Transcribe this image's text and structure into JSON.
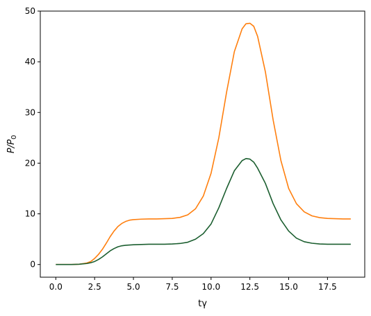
{
  "chart_data": {
    "type": "line",
    "title": "",
    "xlabel": "tγ",
    "ylabel_parts": {
      "base": "P/P",
      "sub": "0"
    },
    "xlim": [
      -1.0,
      19.9
    ],
    "ylim": [
      -2.5,
      50
    ],
    "xticks": [
      0.0,
      2.5,
      5.0,
      7.5,
      10.0,
      12.5,
      15.0,
      17.5
    ],
    "xtick_labels": [
      "0.0",
      "2.5",
      "5.0",
      "7.5",
      "10.0",
      "12.5",
      "15.0",
      "17.5"
    ],
    "yticks": [
      0,
      10,
      20,
      30,
      40,
      50
    ],
    "ytick_labels": [
      "0",
      "10",
      "20",
      "30",
      "40",
      "50"
    ],
    "grid": false,
    "series": [
      {
        "color": "#ff7f0e",
        "x": [
          0,
          0.5,
          1,
          1.5,
          2,
          2.25,
          2.5,
          2.75,
          3,
          3.25,
          3.5,
          3.75,
          4,
          4.25,
          4.5,
          4.75,
          5,
          5.5,
          6,
          6.5,
          7,
          7.5,
          8,
          8.5,
          9,
          9.5,
          10,
          10.5,
          11,
          11.5,
          12,
          12.25,
          12.5,
          12.75,
          13,
          13.5,
          14,
          14.5,
          15,
          15.5,
          16,
          16.5,
          17,
          17.5,
          18,
          18.5,
          19
        ],
        "values": [
          0,
          0,
          0,
          0.05,
          0.3,
          0.6,
          1.2,
          2.0,
          3.0,
          4.2,
          5.5,
          6.6,
          7.5,
          8.1,
          8.5,
          8.75,
          8.85,
          8.95,
          9.0,
          9.0,
          9.05,
          9.1,
          9.3,
          9.8,
          11.0,
          13.5,
          18.0,
          25.0,
          34.0,
          42.0,
          46.5,
          47.5,
          47.6,
          47.0,
          45.0,
          38.0,
          28.5,
          20.5,
          15.0,
          12.0,
          10.4,
          9.6,
          9.25,
          9.1,
          9.05,
          9.0,
          9.0
        ]
      },
      {
        "color": "#1b5e2f",
        "x": [
          0,
          0.5,
          1,
          1.5,
          2,
          2.25,
          2.5,
          2.75,
          3,
          3.25,
          3.5,
          3.75,
          4,
          4.25,
          4.5,
          4.75,
          5,
          5.5,
          6,
          6.5,
          7,
          7.5,
          8,
          8.5,
          9,
          9.5,
          10,
          10.5,
          11,
          11.5,
          12,
          12.25,
          12.5,
          12.75,
          13,
          13.5,
          14,
          14.5,
          15,
          15.5,
          16,
          16.5,
          17,
          17.5,
          18,
          18.5,
          19
        ],
        "values": [
          0,
          0,
          0,
          0.05,
          0.2,
          0.35,
          0.6,
          1.0,
          1.5,
          2.1,
          2.7,
          3.15,
          3.5,
          3.7,
          3.8,
          3.85,
          3.9,
          3.95,
          4.0,
          4.0,
          4.0,
          4.05,
          4.15,
          4.4,
          5.0,
          6.1,
          8.0,
          11.2,
          15.0,
          18.5,
          20.5,
          20.9,
          20.8,
          20.2,
          19.0,
          16.0,
          12.0,
          8.8,
          6.6,
          5.2,
          4.5,
          4.2,
          4.05,
          4.0,
          4.0,
          4.0,
          4.0
        ]
      }
    ]
  }
}
